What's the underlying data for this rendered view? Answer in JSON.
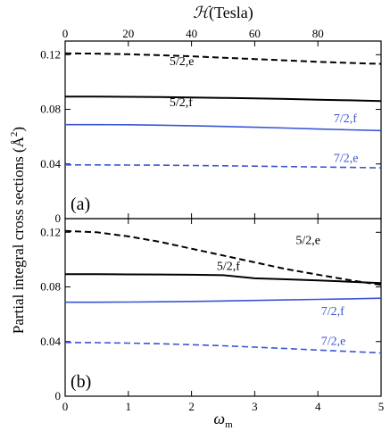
{
  "chart_data": {
    "type": "line",
    "ylabel": "Partial integral cross sections (Å",
    "ylabel_sup": "2",
    "ylabel_close": ")",
    "top_axis": {
      "label_prefix": "ℋ",
      "label_unit": "(Tesla)",
      "ticks": [
        0,
        20,
        40,
        60,
        80
      ],
      "range": [
        0,
        100
      ]
    },
    "bottom_axis": {
      "label": "ω",
      "label_sub": "m",
      "ticks": [
        0,
        1,
        2,
        3,
        4,
        5
      ],
      "range": [
        0,
        5
      ]
    },
    "panels": [
      {
        "letter": "(a)",
        "ylim": [
          0,
          0.13
        ],
        "yticks": [
          "0",
          "0.04",
          "0.08",
          "0.12"
        ],
        "ytick_values": [
          0,
          0.04,
          0.08,
          0.12
        ],
        "series": [
          {
            "name": "5/2,e",
            "color": "#000000",
            "dash": true,
            "x": [
              0,
              10,
              20,
              30,
              40,
              50,
              60,
              70,
              80,
              90,
              100
            ],
            "y": [
              0.121,
              0.1208,
              0.1203,
              0.1196,
              0.1188,
              0.1178,
              0.1168,
              0.1158,
              0.1148,
              0.114,
              0.1133
            ]
          },
          {
            "name": "5/2,f",
            "color": "#000000",
            "dash": false,
            "x": [
              0,
              10,
              20,
              30,
              40,
              50,
              60,
              70,
              80,
              90,
              100
            ],
            "y": [
              0.0893,
              0.0893,
              0.0892,
              0.089,
              0.0887,
              0.0884,
              0.088,
              0.0876,
              0.0871,
              0.0866,
              0.0861
            ]
          },
          {
            "name": "7/2,f",
            "color": "#3a55d6",
            "dash": false,
            "x": [
              0,
              10,
              20,
              30,
              40,
              50,
              60,
              70,
              80,
              90,
              100
            ],
            "y": [
              0.0688,
              0.0688,
              0.0687,
              0.0684,
              0.068,
              0.0675,
              0.0669,
              0.0663,
              0.0656,
              0.065,
              0.0645
            ]
          },
          {
            "name": "7/2,e",
            "color": "#3a55d6",
            "dash": true,
            "x": [
              0,
              10,
              20,
              30,
              40,
              50,
              60,
              70,
              80,
              90,
              100
            ],
            "y": [
              0.0393,
              0.0393,
              0.0392,
              0.0391,
              0.0389,
              0.0387,
              0.0384,
              0.0381,
              0.0378,
              0.0375,
              0.0372
            ]
          }
        ],
        "series_labels": [
          {
            "text": "5/2,e",
            "color": "#000000",
            "x": 33,
            "y": 0.1125
          },
          {
            "text": "5/2,f",
            "color": "#000000",
            "x": 33,
            "y": 0.0822
          },
          {
            "text": "7/2,f",
            "color": "#3a55d6",
            "x": 85,
            "y": 0.0705
          },
          {
            "text": "7/2,e",
            "color": "#3a55d6",
            "x": 85,
            "y": 0.0415
          }
        ]
      },
      {
        "letter": "(b)",
        "ylim": [
          0,
          0.13
        ],
        "yticks": [
          "0",
          "0.04",
          "0.08",
          "0.12"
        ],
        "ytick_values": [
          0,
          0.04,
          0.08,
          0.12
        ],
        "series": [
          {
            "name": "5/2,e",
            "color": "#000000",
            "dash": true,
            "x": [
              0,
              0.5,
              1,
              1.5,
              2,
              2.5,
              3,
              3.5,
              4,
              4.5,
              5
            ],
            "y": [
              0.121,
              0.12,
              0.117,
              0.113,
              0.108,
              0.103,
              0.098,
              0.093,
              0.089,
              0.085,
              0.0815
            ]
          },
          {
            "name": "5/2,f",
            "color": "#000000",
            "dash": false,
            "x": [
              0,
              0.5,
              1,
              1.5,
              2,
              2.5,
              3,
              3.5,
              4,
              4.5,
              5
            ],
            "y": [
              0.0893,
              0.0893,
              0.0892,
              0.0891,
              0.0889,
              0.0886,
              0.0863,
              0.0856,
              0.0848,
              0.0838,
              0.0828
            ]
          },
          {
            "name": "7/2,f",
            "color": "#3a55d6",
            "dash": false,
            "x": [
              0,
              0.5,
              1,
              1.5,
              2,
              2.5,
              3,
              3.5,
              4,
              4.5,
              5
            ],
            "y": [
              0.0688,
              0.0688,
              0.0689,
              0.0691,
              0.0694,
              0.0697,
              0.0701,
              0.0705,
              0.0709,
              0.0713,
              0.0717
            ]
          },
          {
            "name": "7/2,e",
            "color": "#3a55d6",
            "dash": true,
            "x": [
              0,
              0.5,
              1,
              1.5,
              2,
              2.5,
              3,
              3.5,
              4,
              4.5,
              5
            ],
            "y": [
              0.0393,
              0.0392,
              0.0389,
              0.0384,
              0.0377,
              0.0369,
              0.0359,
              0.0349,
              0.0338,
              0.0327,
              0.0317
            ]
          }
        ],
        "series_labels": [
          {
            "text": "5/2,e",
            "color": "#000000",
            "x": 3.65,
            "y": 0.1115
          },
          {
            "text": "5/2,f",
            "color": "#000000",
            "x": 2.4,
            "y": 0.0925
          },
          {
            "text": "7/2,f",
            "color": "#3a55d6",
            "x": 4.05,
            "y": 0.0595
          },
          {
            "text": "7/2,e",
            "color": "#3a55d6",
            "x": 4.05,
            "y": 0.0375
          }
        ]
      }
    ]
  }
}
